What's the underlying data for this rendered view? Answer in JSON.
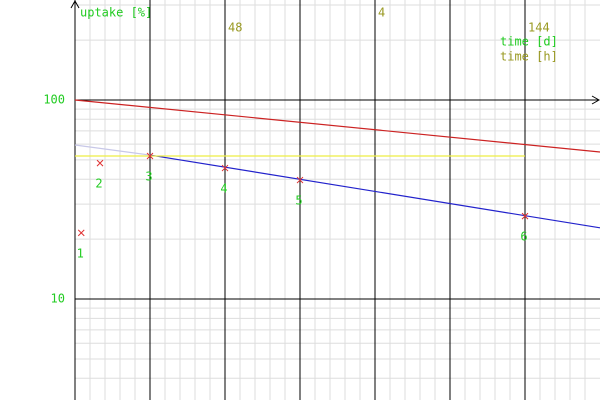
{
  "chart_data": {
    "type": "scatter",
    "y_label": "uptake [%]",
    "x_label": "time [h]",
    "x2_label": "time [d]",
    "xlim": [
      0,
      168
    ],
    "xticks": [
      48,
      144
    ],
    "x2lim": [
      0,
      7
    ],
    "x2ticks": [
      4
    ],
    "xgrid": [
      0,
      24,
      48,
      72,
      96,
      120,
      144
    ],
    "ylim": [
      3.11,
      318
    ],
    "yticks": [
      10,
      100
    ],
    "log_y": true,
    "grid": true,
    "label_color": "#22cc22",
    "x_tick_color": "#999922",
    "points": {
      "color": "#e03030",
      "x": [
        2,
        8,
        24,
        48,
        72,
        144
      ],
      "values": [
        21.5,
        48.2,
        52.3,
        45.5,
        39.6,
        26.1
      ],
      "labels": [
        "1",
        "2",
        "3",
        "4",
        "5",
        "6"
      ]
    },
    "lines": [
      {
        "color": "#cc2222",
        "x": [
          0,
          168
        ],
        "values": [
          100,
          54.8
        ]
      },
      {
        "color": "#c8c8e8",
        "x": [
          0,
          24
        ],
        "values": [
          59.4,
          52.9
        ]
      },
      {
        "color": "#2222cc",
        "x": [
          24,
          168
        ],
        "values": [
          52.9,
          22.8
        ]
      },
      {
        "color": "#eeee44",
        "x": [
          0,
          144
        ],
        "values": [
          52.3,
          52.3
        ]
      }
    ]
  }
}
